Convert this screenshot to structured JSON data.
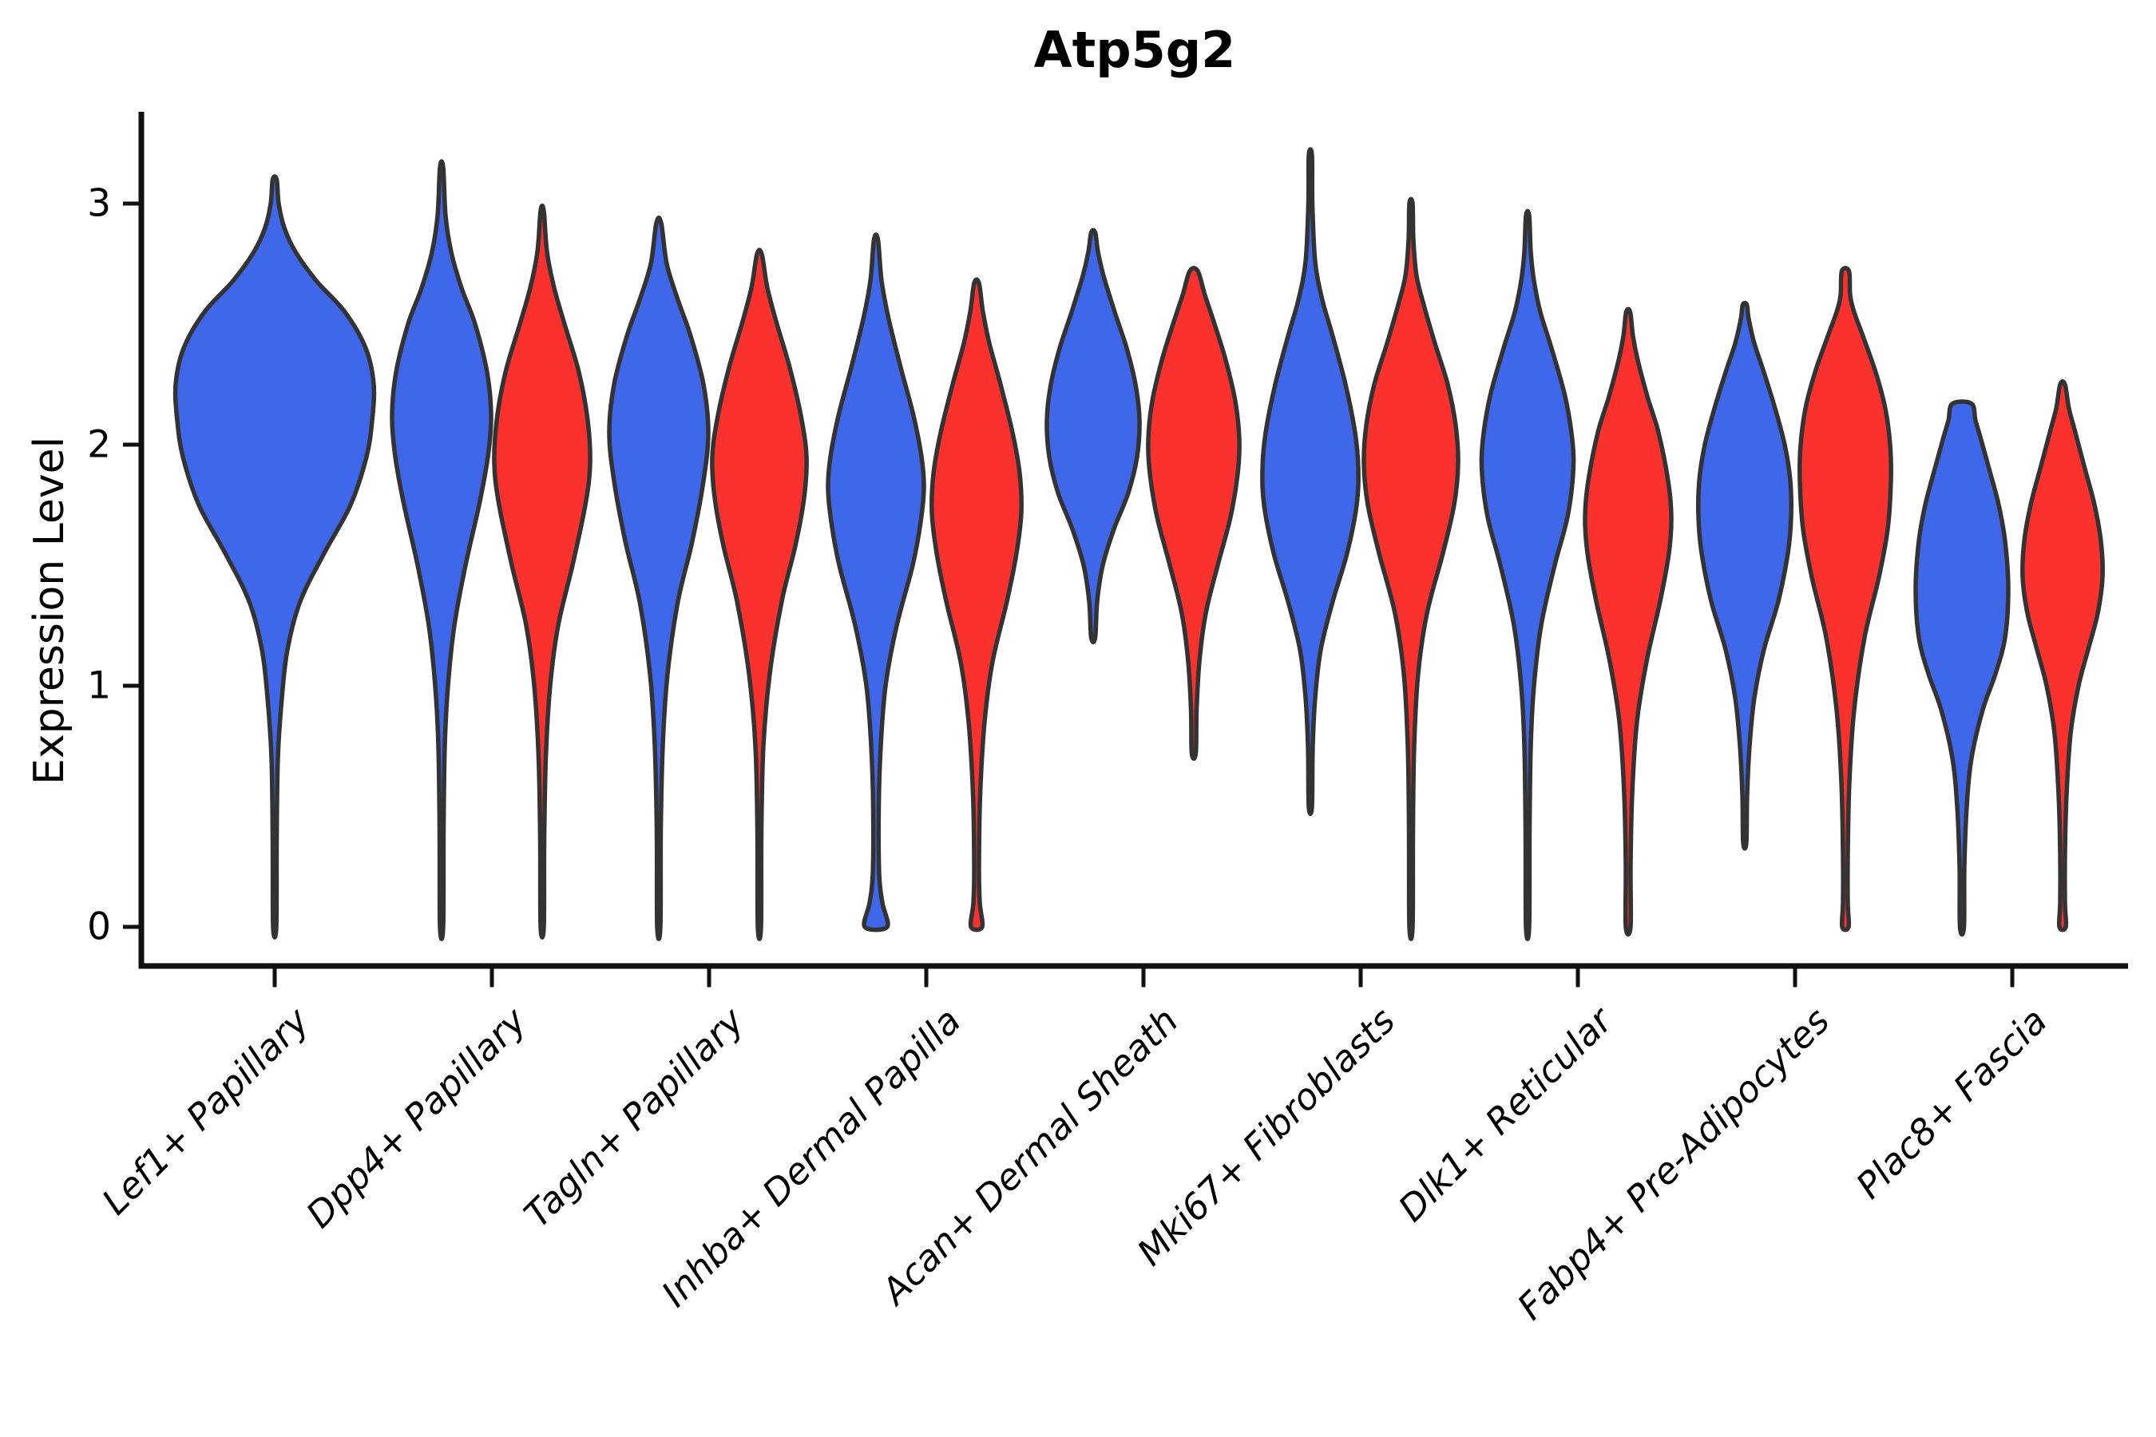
{
  "title": "Atp5g2",
  "axes": {
    "ylabel": "Expression Level"
  },
  "chart_data": {
    "type": "violin",
    "title": "Atp5g2",
    "xlabel": "",
    "ylabel": "Expression Level",
    "yticks": [
      0,
      1,
      2,
      3
    ],
    "ylim": [
      -0.16,
      3.45
    ],
    "grid": false,
    "legend": "none",
    "categories": [
      "Lef1+ Papillary",
      "Dpp4+ Papillary",
      "Tagln+ Papillary",
      "Inhba+ Dermal Papilla",
      "Acan+ Dermal Sheath",
      "Mki67+ Fibroblasts",
      "Dlk1+ Reticular",
      "Fabp4+ Pre-Adipocytes",
      "Plac8+ Fascia"
    ],
    "colors": {
      "blue_fill": "#3F67E9",
      "red_fill": "#FB312E",
      "violin_outline": "#333333",
      "axis": "#111111",
      "background": "#ffffff"
    },
    "series_note": "Each category shows a blue (left) and red (right) expression-density violin; Lef1+ Papillary shows a single centered blue violin. Profiles are [expression_value, density_halfwidth_px] pairs.",
    "violins": [
      {
        "category": 0,
        "group": "blue",
        "side": "center",
        "min": 0,
        "max": 3.1,
        "profile": [
          [
            0,
            2
          ],
          [
            0.35,
            2.5
          ],
          [
            0.7,
            4
          ],
          [
            0.95,
            9
          ],
          [
            1.15,
            16
          ],
          [
            1.35,
            32
          ],
          [
            1.55,
            62
          ],
          [
            1.75,
            95
          ],
          [
            1.95,
            115
          ],
          [
            2.1,
            122
          ],
          [
            2.25,
            124
          ],
          [
            2.4,
            114
          ],
          [
            2.55,
            88
          ],
          [
            2.68,
            52
          ],
          [
            2.8,
            26
          ],
          [
            2.9,
            12
          ],
          [
            3.0,
            5
          ],
          [
            3.1,
            2.5
          ]
        ]
      },
      {
        "category": 1,
        "group": "blue",
        "side": "left",
        "min": 0,
        "max": 3.15,
        "profile": [
          [
            0,
            2
          ],
          [
            0.4,
            2.5
          ],
          [
            0.75,
            4
          ],
          [
            1.0,
            8
          ],
          [
            1.25,
            16
          ],
          [
            1.5,
            30
          ],
          [
            1.75,
            47
          ],
          [
            1.95,
            58
          ],
          [
            2.12,
            62
          ],
          [
            2.3,
            57
          ],
          [
            2.5,
            42
          ],
          [
            2.65,
            25
          ],
          [
            2.8,
            12
          ],
          [
            2.95,
            5
          ],
          [
            3.15,
            2
          ]
        ]
      },
      {
        "category": 1,
        "group": "red",
        "side": "right",
        "min": 0,
        "max": 2.97,
        "profile": [
          [
            0,
            2
          ],
          [
            0.35,
            2.5
          ],
          [
            0.7,
            4.5
          ],
          [
            1.0,
            10
          ],
          [
            1.25,
            20
          ],
          [
            1.5,
            38
          ],
          [
            1.75,
            54
          ],
          [
            1.92,
            60
          ],
          [
            2.1,
            57
          ],
          [
            2.3,
            46
          ],
          [
            2.5,
            28
          ],
          [
            2.65,
            15
          ],
          [
            2.8,
            6
          ],
          [
            2.97,
            2
          ]
        ]
      },
      {
        "category": 2,
        "group": "blue",
        "side": "left",
        "min": 0,
        "max": 2.92,
        "profile": [
          [
            0,
            2
          ],
          [
            0.4,
            2.5
          ],
          [
            0.75,
            5
          ],
          [
            1.05,
            11
          ],
          [
            1.35,
            24
          ],
          [
            1.6,
            42
          ],
          [
            1.85,
            56
          ],
          [
            2.05,
            62
          ],
          [
            2.25,
            56
          ],
          [
            2.45,
            40
          ],
          [
            2.6,
            24
          ],
          [
            2.75,
            10
          ],
          [
            2.92,
            3
          ]
        ]
      },
      {
        "category": 2,
        "group": "red",
        "side": "right",
        "min": 0,
        "max": 2.79,
        "profile": [
          [
            0,
            2
          ],
          [
            0.4,
            2.5
          ],
          [
            0.75,
            5
          ],
          [
            1.05,
            13
          ],
          [
            1.35,
            28
          ],
          [
            1.58,
            45
          ],
          [
            1.78,
            56
          ],
          [
            1.95,
            59
          ],
          [
            2.12,
            52
          ],
          [
            2.32,
            38
          ],
          [
            2.5,
            22
          ],
          [
            2.65,
            10
          ],
          [
            2.79,
            3
          ]
        ]
      },
      {
        "category": 3,
        "group": "blue",
        "side": "left",
        "min": 0,
        "max": 2.85,
        "profile": [
          [
            0,
            14
          ],
          [
            0.1,
            8
          ],
          [
            0.22,
            4
          ],
          [
            0.5,
            3.5
          ],
          [
            0.75,
            6
          ],
          [
            1.0,
            12
          ],
          [
            1.25,
            26
          ],
          [
            1.5,
            46
          ],
          [
            1.68,
            56
          ],
          [
            1.82,
            60
          ],
          [
            1.95,
            57
          ],
          [
            2.12,
            47
          ],
          [
            2.32,
            31
          ],
          [
            2.52,
            16
          ],
          [
            2.68,
            7
          ],
          [
            2.85,
            2.5
          ]
        ]
      },
      {
        "category": 3,
        "group": "red",
        "side": "right",
        "min": 0,
        "max": 2.67,
        "profile": [
          [
            0,
            7
          ],
          [
            0.1,
            4
          ],
          [
            0.25,
            3
          ],
          [
            0.55,
            4.5
          ],
          [
            0.85,
            10
          ],
          [
            1.1,
            20
          ],
          [
            1.35,
            38
          ],
          [
            1.55,
            50
          ],
          [
            1.72,
            56
          ],
          [
            1.88,
            54
          ],
          [
            2.05,
            45
          ],
          [
            2.25,
            30
          ],
          [
            2.42,
            16
          ],
          [
            2.55,
            8
          ],
          [
            2.67,
            3
          ]
        ]
      },
      {
        "category": 4,
        "group": "blue",
        "side": "left",
        "min": 1.2,
        "max": 2.88,
        "profile": [
          [
            1.2,
            2.5
          ],
          [
            1.35,
            5
          ],
          [
            1.5,
            12
          ],
          [
            1.65,
            26
          ],
          [
            1.8,
            44
          ],
          [
            1.95,
            55
          ],
          [
            2.1,
            58
          ],
          [
            2.25,
            53
          ],
          [
            2.4,
            42
          ],
          [
            2.55,
            27
          ],
          [
            2.7,
            13
          ],
          [
            2.8,
            6
          ],
          [
            2.88,
            2.5
          ]
        ]
      },
      {
        "category": 4,
        "group": "red",
        "side": "right",
        "min": 0.72,
        "max": 2.72,
        "profile": [
          [
            0.72,
            2.5
          ],
          [
            0.9,
            3.5
          ],
          [
            1.1,
            7
          ],
          [
            1.3,
            15
          ],
          [
            1.5,
            30
          ],
          [
            1.7,
            46
          ],
          [
            1.88,
            55
          ],
          [
            2.02,
            57
          ],
          [
            2.18,
            52
          ],
          [
            2.35,
            40
          ],
          [
            2.5,
            26
          ],
          [
            2.62,
            14
          ],
          [
            2.72,
            5
          ]
        ]
      },
      {
        "category": 5,
        "group": "blue",
        "side": "left",
        "min": 0.5,
        "max": 3.2,
        "profile": [
          [
            0.5,
            2
          ],
          [
            0.75,
            3
          ],
          [
            0.95,
            6
          ],
          [
            1.15,
            13
          ],
          [
            1.35,
            28
          ],
          [
            1.55,
            46
          ],
          [
            1.75,
            58
          ],
          [
            1.9,
            60
          ],
          [
            2.05,
            56
          ],
          [
            2.25,
            44
          ],
          [
            2.45,
            28
          ],
          [
            2.6,
            15
          ],
          [
            2.76,
            6
          ],
          [
            3.0,
            2.5
          ],
          [
            3.2,
            2
          ]
        ]
      },
      {
        "category": 5,
        "group": "red",
        "side": "right",
        "min": 0,
        "max": 3.0,
        "profile": [
          [
            0,
            2
          ],
          [
            0.4,
            2.5
          ],
          [
            0.75,
            4
          ],
          [
            1.05,
            9
          ],
          [
            1.3,
            20
          ],
          [
            1.55,
            40
          ],
          [
            1.75,
            54
          ],
          [
            1.92,
            59
          ],
          [
            2.08,
            56
          ],
          [
            2.25,
            46
          ],
          [
            2.42,
            30
          ],
          [
            2.58,
            16
          ],
          [
            2.7,
            7
          ],
          [
            2.85,
            3
          ],
          [
            3.0,
            2
          ]
        ]
      },
      {
        "category": 6,
        "group": "blue",
        "side": "left",
        "min": 0,
        "max": 2.95,
        "profile": [
          [
            0,
            2
          ],
          [
            0.4,
            2.5
          ],
          [
            0.75,
            4
          ],
          [
            1.0,
            8
          ],
          [
            1.25,
            17
          ],
          [
            1.5,
            34
          ],
          [
            1.7,
            50
          ],
          [
            1.88,
            57
          ],
          [
            2.02,
            56
          ],
          [
            2.2,
            47
          ],
          [
            2.4,
            30
          ],
          [
            2.55,
            16
          ],
          [
            2.68,
            8
          ],
          [
            2.8,
            4
          ],
          [
            2.95,
            2
          ]
        ]
      },
      {
        "category": 6,
        "group": "red",
        "side": "right",
        "min": 0,
        "max": 2.55,
        "profile": [
          [
            0,
            3
          ],
          [
            0.25,
            3
          ],
          [
            0.55,
            5
          ],
          [
            0.85,
            11
          ],
          [
            1.1,
            23
          ],
          [
            1.35,
            40
          ],
          [
            1.55,
            51
          ],
          [
            1.7,
            54
          ],
          [
            1.85,
            50
          ],
          [
            2.05,
            38
          ],
          [
            2.2,
            24
          ],
          [
            2.35,
            12
          ],
          [
            2.45,
            6
          ],
          [
            2.55,
            2.5
          ]
        ]
      },
      {
        "category": 7,
        "group": "blue",
        "side": "left",
        "min": 0.35,
        "max": 2.58,
        "profile": [
          [
            0.35,
            2
          ],
          [
            0.55,
            3
          ],
          [
            0.75,
            6
          ],
          [
            0.95,
            12
          ],
          [
            1.15,
            24
          ],
          [
            1.35,
            42
          ],
          [
            1.55,
            54
          ],
          [
            1.7,
            58
          ],
          [
            1.85,
            57
          ],
          [
            2.0,
            50
          ],
          [
            2.15,
            38
          ],
          [
            2.3,
            24
          ],
          [
            2.42,
            12
          ],
          [
            2.52,
            5
          ],
          [
            2.58,
            2.5
          ]
        ]
      },
      {
        "category": 7,
        "group": "red",
        "side": "right",
        "min": 0,
        "max": 2.72,
        "profile": [
          [
            0,
            4
          ],
          [
            0.1,
            3
          ],
          [
            0.3,
            3
          ],
          [
            0.6,
            5
          ],
          [
            0.9,
            11
          ],
          [
            1.2,
            24
          ],
          [
            1.45,
            42
          ],
          [
            1.65,
            53
          ],
          [
            1.85,
            57
          ],
          [
            2.0,
            56
          ],
          [
            2.15,
            50
          ],
          [
            2.3,
            38
          ],
          [
            2.45,
            22
          ],
          [
            2.55,
            11
          ],
          [
            2.62,
            6
          ],
          [
            2.72,
            4.5
          ]
        ]
      },
      {
        "category": 8,
        "group": "blue",
        "side": "left",
        "min": 0,
        "max": 2.17,
        "profile": [
          [
            0,
            2.5
          ],
          [
            0.25,
            3
          ],
          [
            0.5,
            6
          ],
          [
            0.7,
            12
          ],
          [
            0.9,
            26
          ],
          [
            1.05,
            42
          ],
          [
            1.2,
            54
          ],
          [
            1.4,
            58
          ],
          [
            1.6,
            54
          ],
          [
            1.75,
            46
          ],
          [
            1.9,
            34
          ],
          [
            2.02,
            24
          ],
          [
            2.1,
            17
          ],
          [
            2.17,
            12
          ]
        ]
      },
      {
        "category": 8,
        "group": "red",
        "side": "right",
        "min": 0,
        "max": 2.25,
        "profile": [
          [
            0,
            4
          ],
          [
            0.1,
            3
          ],
          [
            0.3,
            3
          ],
          [
            0.55,
            5
          ],
          [
            0.8,
            10
          ],
          [
            1.0,
            20
          ],
          [
            1.15,
            32
          ],
          [
            1.3,
            44
          ],
          [
            1.45,
            50
          ],
          [
            1.6,
            48
          ],
          [
            1.75,
            40
          ],
          [
            1.9,
            28
          ],
          [
            2.05,
            16
          ],
          [
            2.15,
            8
          ],
          [
            2.25,
            3
          ]
        ]
      }
    ]
  }
}
